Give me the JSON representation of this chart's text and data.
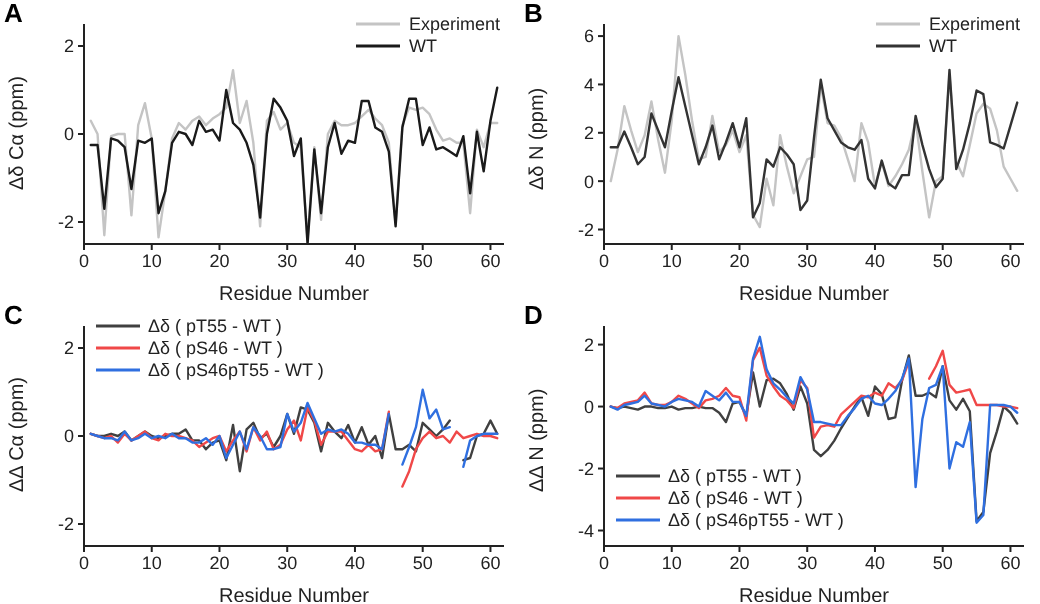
{
  "chart_data": [
    {
      "type": "line",
      "annotations": [
        "A"
      ],
      "xlabel": "Residue Number",
      "ylabel": "Δδ Cα (ppm)",
      "legend": "top right",
      "x": [
        1,
        2,
        3,
        4,
        5,
        6,
        7,
        8,
        9,
        10,
        11,
        12,
        13,
        14,
        15,
        16,
        17,
        18,
        19,
        20,
        21,
        22,
        23,
        24,
        25,
        26,
        27,
        28,
        29,
        30,
        31,
        32,
        33,
        34,
        35,
        36,
        37,
        38,
        39,
        40,
        41,
        42,
        43,
        44,
        45,
        46,
        47,
        48,
        49,
        50,
        51,
        52,
        53,
        54,
        55,
        56,
        57,
        58,
        59,
        60,
        61
      ],
      "xlim": [
        0,
        62
      ],
      "xticks": [
        0,
        10,
        20,
        30,
        40,
        50,
        60
      ],
      "ylim": [
        -2.5,
        2.5
      ],
      "yticks": [
        -2,
        0,
        2
      ],
      "series": [
        {
          "name": "Experiment",
          "color": "#c4c4c4",
          "values": [
            0.3,
            0.0,
            -2.3,
            -0.05,
            0.0,
            0.0,
            -1.85,
            0.2,
            0.7,
            -0.1,
            -2.35,
            -1.3,
            -0.1,
            0.25,
            0.1,
            0.3,
            0.4,
            0.2,
            0.35,
            0.45,
            0.6,
            1.45,
            0.25,
            0.75,
            -0.2,
            -2.1,
            0.3,
            0.5,
            0.1,
            0.25,
            -0.2,
            -0.3,
            -2.4,
            -0.3,
            -1.95,
            0.0,
            0.3,
            0.2,
            0.2,
            0.25,
            0.4,
            0.55,
            0.35,
            0.2,
            -0.2,
            -2.05,
            0.2,
            0.6,
            0.55,
            0.6,
            0.45,
            0.1,
            -0.15,
            -0.1,
            -0.2,
            -0.2,
            -1.8,
            0.1,
            -0.3,
            0.25,
            0.25
          ]
        },
        {
          "name": "WT",
          "color": "#1a1a1a",
          "values": [
            -0.25,
            -0.25,
            -1.7,
            -0.1,
            -0.15,
            -0.3,
            -1.25,
            -0.15,
            -0.2,
            -0.1,
            -1.8,
            -1.3,
            -0.2,
            0.05,
            0.0,
            -0.25,
            0.3,
            0.05,
            0.1,
            -0.15,
            1.0,
            0.25,
            0.1,
            -0.2,
            -0.7,
            -1.9,
            0.0,
            0.8,
            0.6,
            0.3,
            -0.5,
            -0.1,
            -2.5,
            -0.35,
            -1.8,
            -0.3,
            0.25,
            -0.45,
            -0.15,
            -0.2,
            0.75,
            0.75,
            0.15,
            0.05,
            -0.4,
            -2.1,
            0.15,
            0.8,
            0.8,
            -0.25,
            0.15,
            -0.35,
            -0.3,
            -0.4,
            -0.5,
            -0.05,
            -1.35,
            0.05,
            -0.85,
            0.3,
            1.05
          ]
        }
      ]
    },
    {
      "type": "line",
      "annotations": [
        "B"
      ],
      "xlabel": "Residue Number",
      "ylabel": "Δδ N (ppm)",
      "legend": "top right",
      "x": [
        1,
        2,
        3,
        4,
        5,
        6,
        7,
        8,
        9,
        10,
        11,
        12,
        13,
        14,
        15,
        16,
        17,
        18,
        19,
        20,
        21,
        22,
        23,
        24,
        25,
        26,
        27,
        28,
        29,
        30,
        31,
        32,
        33,
        34,
        35,
        36,
        37,
        38,
        39,
        40,
        41,
        42,
        43,
        44,
        45,
        46,
        47,
        48,
        49,
        50,
        51,
        52,
        53,
        54,
        55,
        56,
        57,
        58,
        59,
        60,
        61
      ],
      "xlim": [
        0,
        62
      ],
      "xticks": [
        0,
        10,
        20,
        30,
        40,
        50,
        60
      ],
      "ylim": [
        -2.6,
        6.5
      ],
      "yticks": [
        -2,
        0,
        2,
        4,
        6
      ],
      "series": [
        {
          "name": "Experiment",
          "color": "#c4c4c4",
          "values": [
            0.0,
            1.3,
            3.1,
            2.1,
            1.2,
            1.9,
            3.3,
            1.7,
            0.35,
            2.5,
            6.0,
            4.4,
            2.5,
            0.9,
            1.0,
            2.7,
            1.2,
            1.5,
            2.1,
            1.2,
            1.9,
            -1.4,
            -1.9,
            0.1,
            -1.0,
            1.9,
            0.6,
            -0.5,
            0.2,
            0.9,
            1.0,
            4.0,
            2.4,
            2.3,
            1.8,
            0.9,
            0.0,
            2.4,
            1.6,
            -0.2,
            0.8,
            -0.2,
            0.2,
            0.7,
            1.3,
            2.5,
            0.4,
            -1.5,
            0.0,
            0.2,
            4.4,
            0.8,
            0.2,
            1.5,
            2.8,
            3.2,
            3.0,
            2.1,
            0.6,
            0.1,
            -0.4
          ]
        },
        {
          "name": "WT",
          "color": "#333333",
          "values": [
            1.4,
            1.4,
            2.05,
            1.4,
            0.7,
            1.0,
            2.8,
            2.1,
            1.4,
            2.9,
            4.3,
            3.1,
            1.9,
            0.7,
            1.4,
            2.3,
            0.9,
            1.6,
            2.4,
            1.4,
            2.6,
            -1.5,
            -0.9,
            0.9,
            0.6,
            1.4,
            1.1,
            0.7,
            -1.2,
            -0.8,
            1.8,
            4.2,
            2.6,
            2.1,
            1.6,
            1.4,
            1.3,
            1.7,
            0.1,
            -0.3,
            0.85,
            -0.1,
            -0.3,
            0.25,
            0.25,
            2.7,
            1.5,
            0.5,
            -0.25,
            0.1,
            4.6,
            0.5,
            1.3,
            2.4,
            3.75,
            3.6,
            1.6,
            1.5,
            1.35,
            2.3,
            3.25
          ]
        }
      ]
    },
    {
      "type": "line",
      "annotations": [
        "C"
      ],
      "xlabel": "Residue Number",
      "ylabel": "ΔΔ Cα (ppm)",
      "legend": "top left",
      "x": [
        1,
        2,
        3,
        4,
        5,
        6,
        7,
        8,
        9,
        10,
        11,
        12,
        13,
        14,
        15,
        16,
        17,
        18,
        19,
        20,
        21,
        22,
        23,
        24,
        25,
        26,
        27,
        28,
        29,
        30,
        31,
        32,
        33,
        34,
        35,
        36,
        37,
        38,
        39,
        40,
        41,
        42,
        43,
        44,
        45,
        46,
        47,
        48,
        49,
        50,
        51,
        52,
        53,
        54,
        55,
        56,
        57,
        58,
        59,
        60,
        61
      ],
      "xlim": [
        0,
        62
      ],
      "xticks": [
        0,
        10,
        20,
        30,
        40,
        50,
        60
      ],
      "ylim": [
        -2.5,
        2.5
      ],
      "yticks": [
        -2,
        0,
        2
      ],
      "series": [
        {
          "name": "Δδ ( pT55 - WT )",
          "color": "#404040",
          "values": [
            0.05,
            0.0,
            0.0,
            0.05,
            0.0,
            0.1,
            -0.1,
            0.0,
            0.1,
            0.0,
            -0.05,
            0.0,
            0.05,
            0.05,
            0.15,
            -0.1,
            -0.1,
            -0.3,
            -0.15,
            -0.1,
            -0.55,
            0.25,
            -0.8,
            0.15,
            0.3,
            -0.05,
            0.05,
            -0.25,
            0.0,
            0.5,
            0.05,
            0.65,
            0.6,
            0.3,
            -0.35,
            0.3,
            0.1,
            -0.05,
            0.25,
            -0.15,
            0.2,
            -0.2,
            0.0,
            -0.5,
            0.5,
            -0.3,
            -0.3,
            -0.2,
            -0.35,
            0.3,
            0.15,
            0.0,
            0.15,
            0.35,
            null,
            -0.55,
            -0.5,
            0.0,
            0.05,
            0.35,
            0.05
          ]
        },
        {
          "name": "Δδ ( pS46 - WT )",
          "color": "#f04848",
          "values": [
            0.05,
            0.0,
            -0.05,
            0.0,
            -0.15,
            0.05,
            -0.1,
            0.0,
            0.1,
            -0.05,
            -0.1,
            0.05,
            0.0,
            0.0,
            -0.05,
            -0.1,
            -0.25,
            -0.15,
            -0.05,
            0.0,
            -0.35,
            -0.1,
            0.1,
            -0.35,
            0.2,
            -0.1,
            0.1,
            -0.3,
            -0.2,
            0.15,
            0.35,
            -0.1,
            0.65,
            0.35,
            -0.2,
            0.1,
            0.1,
            0.1,
            -0.1,
            -0.3,
            -0.35,
            -0.2,
            -0.35,
            -0.3,
            0.55,
            null,
            -1.15,
            -0.8,
            -0.3,
            -0.05,
            0.1,
            -0.05,
            0.0,
            -0.15,
            0.1,
            -0.05,
            0.0,
            0.05,
            0.0,
            0.0,
            -0.05
          ]
        },
        {
          "name": "Δδ ( pS46pT55 - WT )",
          "color": "#2f6fe0",
          "values": [
            0.05,
            0.0,
            -0.05,
            -0.05,
            -0.1,
            0.1,
            -0.1,
            -0.05,
            0.05,
            -0.05,
            0.0,
            -0.05,
            0.05,
            -0.05,
            -0.05,
            -0.15,
            -0.15,
            -0.05,
            -0.2,
            0.0,
            -0.5,
            -0.2,
            0.1,
            -0.3,
            0.2,
            0.0,
            -0.3,
            -0.3,
            -0.25,
            0.5,
            0.1,
            0.3,
            0.75,
            0.4,
            0.05,
            0.15,
            0.1,
            0.15,
            0.05,
            -0.15,
            -0.15,
            -0.2,
            -0.2,
            -0.3,
            0.5,
            null,
            -0.65,
            -0.25,
            0.2,
            1.05,
            0.4,
            0.6,
            0.15,
            0.2,
            null,
            -0.7,
            -0.1,
            0.0,
            0.05,
            0.05,
            0.05
          ]
        }
      ]
    },
    {
      "type": "line",
      "annotations": [
        "D"
      ],
      "xlabel": "Residue Number",
      "ylabel": "ΔΔ N (ppm)",
      "legend": "bottom left",
      "x": [
        1,
        2,
        3,
        4,
        5,
        6,
        7,
        8,
        9,
        10,
        11,
        12,
        13,
        14,
        15,
        16,
        17,
        18,
        19,
        20,
        21,
        22,
        23,
        24,
        25,
        26,
        27,
        28,
        29,
        30,
        31,
        32,
        33,
        34,
        35,
        36,
        37,
        38,
        39,
        40,
        41,
        42,
        43,
        44,
        45,
        46,
        47,
        48,
        49,
        50,
        51,
        52,
        53,
        54,
        55,
        56,
        57,
        58,
        59,
        60,
        61
      ],
      "xlim": [
        0,
        62
      ],
      "xticks": [
        0,
        10,
        20,
        30,
        40,
        50,
        60
      ],
      "ylim": [
        -4.5,
        2.6
      ],
      "yticks": [
        -4,
        -2,
        0,
        2
      ],
      "series": [
        {
          "name": "Δδ ( pT55 - WT )",
          "color": "#404040",
          "values": [
            0.0,
            -0.05,
            0.0,
            -0.05,
            -0.1,
            0.0,
            0.0,
            -0.05,
            -0.05,
            0.0,
            -0.1,
            -0.05,
            -0.05,
            0.0,
            -0.05,
            -0.05,
            -0.2,
            -0.5,
            0.1,
            0.15,
            -0.3,
            1.1,
            0.0,
            0.85,
            0.9,
            0.75,
            0.4,
            -0.1,
            0.65,
            0.1,
            -1.4,
            -1.6,
            -1.4,
            -1.1,
            -0.7,
            -0.35,
            0.0,
            0.3,
            -0.3,
            0.65,
            0.4,
            -0.4,
            -0.35,
            0.85,
            1.65,
            0.35,
            0.35,
            0.45,
            0.3,
            1.3,
            0.2,
            -0.1,
            0.25,
            -0.15,
            -3.7,
            -3.4,
            -1.5,
            -0.8,
            0.0,
            -0.2,
            -0.55
          ]
        },
        {
          "name": "Δδ ( pS46 - WT )",
          "color": "#f04848",
          "values": [
            0.0,
            -0.05,
            0.1,
            0.15,
            0.2,
            0.45,
            0.1,
            0.05,
            0.05,
            0.15,
            0.35,
            0.25,
            0.1,
            -0.05,
            0.2,
            0.25,
            0.35,
            0.6,
            0.35,
            0.3,
            -0.45,
            1.5,
            1.9,
            1.0,
            0.65,
            0.35,
            0.2,
            -0.05,
            0.85,
            0.6,
            -1.0,
            -0.65,
            -0.6,
            -0.65,
            -0.25,
            -0.05,
            0.15,
            0.35,
            0.3,
            0.45,
            0.35,
            0.75,
            0.6,
            0.85,
            1.45,
            null,
            null,
            0.9,
            1.3,
            1.8,
            0.7,
            0.45,
            0.5,
            0.55,
            0.05,
            0.05,
            0.05,
            0.05,
            0.0,
            0.0,
            -0.05
          ]
        },
        {
          "name": "Δδ ( pS46pT55 - WT )",
          "color": "#2f6fe0",
          "values": [
            0.0,
            -0.1,
            0.05,
            0.1,
            0.15,
            0.35,
            0.1,
            0.05,
            0.0,
            0.15,
            0.25,
            0.2,
            0.15,
            0.0,
            0.5,
            0.35,
            0.2,
            0.45,
            0.15,
            0.15,
            -0.3,
            1.55,
            2.25,
            1.2,
            0.75,
            0.55,
            0.3,
            0.1,
            0.95,
            0.55,
            -0.5,
            -0.5,
            -0.55,
            -0.6,
            -0.6,
            -0.3,
            -0.05,
            0.25,
            0.35,
            0.1,
            0.05,
            0.25,
            0.5,
            0.9,
            1.55,
            -2.6,
            -0.4,
            0.6,
            0.7,
            1.3,
            -2.0,
            -1.15,
            -1.3,
            -0.5,
            -3.75,
            -3.5,
            0.05,
            0.05,
            0.05,
            0.0,
            -0.2
          ]
        }
      ]
    }
  ]
}
